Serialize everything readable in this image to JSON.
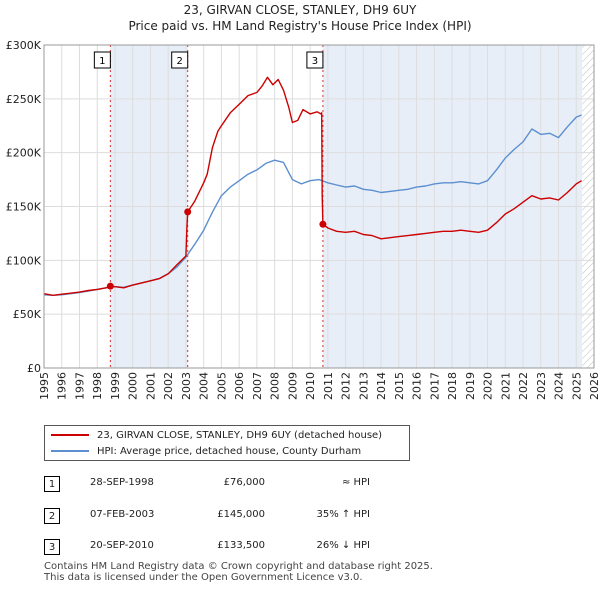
{
  "header": {
    "title": "23, GIRVAN CLOSE, STANLEY, DH9 6UY",
    "subtitle": "Price paid vs. HM Land Registry's House Price Index (HPI)"
  },
  "chart_data": {
    "type": "line",
    "title": "23, GIRVAN CLOSE, STANLEY, DH9 6UY",
    "subtitle": "Price paid vs. HM Land Registry's House Price Index (HPI)",
    "xlim": [
      1995,
      2026
    ],
    "ylim": [
      0,
      300000
    ],
    "x_ticks": [
      "1995",
      "1996",
      "1997",
      "1998",
      "1999",
      "2000",
      "2001",
      "2002",
      "2003",
      "2004",
      "2005",
      "2006",
      "2007",
      "2008",
      "2009",
      "2010",
      "2011",
      "2012",
      "2013",
      "2014",
      "2015",
      "2016",
      "2017",
      "2018",
      "2019",
      "2020",
      "2021",
      "2022",
      "2023",
      "2024",
      "2025",
      "2026"
    ],
    "y_ticks": [
      {
        "value": 0,
        "label": "£0"
      },
      {
        "value": 50000,
        "label": "£50K"
      },
      {
        "value": 100000,
        "label": "£100K"
      },
      {
        "value": 150000,
        "label": "£150K"
      },
      {
        "value": 200000,
        "label": "£200K"
      },
      {
        "value": 250000,
        "label": "£250K"
      },
      {
        "value": 300000,
        "label": "£300K"
      }
    ],
    "shaded_ranges": [
      [
        1998.74,
        2003.1
      ],
      [
        2010.72,
        2025.33
      ]
    ],
    "hatch_from": 2025.33,
    "series": [
      {
        "name": "23, GIRVAN CLOSE, STANLEY, DH9 6UY (detached house)",
        "color": "#cc0000",
        "points": [
          [
            1995.0,
            69000
          ],
          [
            1995.5,
            67500
          ],
          [
            1996.0,
            68500
          ],
          [
            1996.5,
            69500
          ],
          [
            1997.0,
            70500
          ],
          [
            1997.5,
            72000
          ],
          [
            1998.0,
            73000
          ],
          [
            1998.5,
            74500
          ],
          [
            1998.74,
            76000
          ],
          [
            1999.0,
            75500
          ],
          [
            1999.5,
            74500
          ],
          [
            2000.0,
            77000
          ],
          [
            2000.5,
            79000
          ],
          [
            2001.0,
            81000
          ],
          [
            2001.5,
            83000
          ],
          [
            2002.0,
            87500
          ],
          [
            2002.5,
            96000
          ],
          [
            2003.0,
            104000
          ],
          [
            2003.05,
            128000
          ],
          [
            2003.1,
            145000
          ],
          [
            2003.5,
            155000
          ],
          [
            2004.0,
            172000
          ],
          [
            2004.2,
            180000
          ],
          [
            2004.5,
            205000
          ],
          [
            2004.8,
            220000
          ],
          [
            2005.0,
            225000
          ],
          [
            2005.5,
            237000
          ],
          [
            2006.0,
            245000
          ],
          [
            2006.5,
            253000
          ],
          [
            2007.0,
            256000
          ],
          [
            2007.3,
            262000
          ],
          [
            2007.6,
            270000
          ],
          [
            2007.9,
            263000
          ],
          [
            2008.2,
            268000
          ],
          [
            2008.5,
            258000
          ],
          [
            2008.8,
            242000
          ],
          [
            2009.0,
            228000
          ],
          [
            2009.3,
            230000
          ],
          [
            2009.6,
            240000
          ],
          [
            2010.0,
            236000
          ],
          [
            2010.4,
            238000
          ],
          [
            2010.6,
            236000
          ],
          [
            2010.65,
            237000
          ],
          [
            2010.68,
            160000
          ],
          [
            2010.72,
            133500
          ],
          [
            2011.0,
            130000
          ],
          [
            2011.5,
            127000
          ],
          [
            2012.0,
            126000
          ],
          [
            2012.5,
            127000
          ],
          [
            2013.0,
            124000
          ],
          [
            2013.5,
            123000
          ],
          [
            2014.0,
            120000
          ],
          [
            2014.5,
            121000
          ],
          [
            2015.0,
            122000
          ],
          [
            2015.5,
            123000
          ],
          [
            2016.0,
            124000
          ],
          [
            2016.5,
            125000
          ],
          [
            2017.0,
            126000
          ],
          [
            2017.5,
            127000
          ],
          [
            2018.0,
            127000
          ],
          [
            2018.5,
            128000
          ],
          [
            2019.0,
            127000
          ],
          [
            2019.5,
            126000
          ],
          [
            2020.0,
            128000
          ],
          [
            2020.5,
            135000
          ],
          [
            2021.0,
            143000
          ],
          [
            2021.5,
            148000
          ],
          [
            2022.0,
            154000
          ],
          [
            2022.5,
            160000
          ],
          [
            2023.0,
            157000
          ],
          [
            2023.5,
            158000
          ],
          [
            2024.0,
            156000
          ],
          [
            2024.5,
            163000
          ],
          [
            2025.0,
            171000
          ],
          [
            2025.3,
            174000
          ]
        ]
      },
      {
        "name": "HPI: Average price, detached house, County Durham",
        "color": "#5b8fd0",
        "points": [
          [
            1995.0,
            68000
          ],
          [
            1995.5,
            67500
          ],
          [
            1996.0,
            68000
          ],
          [
            1996.5,
            69000
          ],
          [
            1997.0,
            70000
          ],
          [
            1997.5,
            71500
          ],
          [
            1998.0,
            73000
          ],
          [
            1998.5,
            74500
          ],
          [
            1999.0,
            75500
          ],
          [
            1999.5,
            75000
          ],
          [
            2000.0,
            77000
          ],
          [
            2000.5,
            79000
          ],
          [
            2001.0,
            81000
          ],
          [
            2001.5,
            83000
          ],
          [
            2002.0,
            87500
          ],
          [
            2002.5,
            94000
          ],
          [
            2003.0,
            103000
          ],
          [
            2003.5,
            115000
          ],
          [
            2004.0,
            128000
          ],
          [
            2004.5,
            145000
          ],
          [
            2005.0,
            160000
          ],
          [
            2005.5,
            168000
          ],
          [
            2006.0,
            174000
          ],
          [
            2006.5,
            180000
          ],
          [
            2007.0,
            184000
          ],
          [
            2007.5,
            190000
          ],
          [
            2008.0,
            193000
          ],
          [
            2008.5,
            191000
          ],
          [
            2009.0,
            175000
          ],
          [
            2009.5,
            171000
          ],
          [
            2010.0,
            174000
          ],
          [
            2010.5,
            175000
          ],
          [
            2011.0,
            172000
          ],
          [
            2011.5,
            170000
          ],
          [
            2012.0,
            168000
          ],
          [
            2012.5,
            169000
          ],
          [
            2013.0,
            166000
          ],
          [
            2013.5,
            165000
          ],
          [
            2014.0,
            163000
          ],
          [
            2014.5,
            164000
          ],
          [
            2015.0,
            165000
          ],
          [
            2015.5,
            166000
          ],
          [
            2016.0,
            168000
          ],
          [
            2016.5,
            169000
          ],
          [
            2017.0,
            171000
          ],
          [
            2017.5,
            172000
          ],
          [
            2018.0,
            172000
          ],
          [
            2018.5,
            173000
          ],
          [
            2019.0,
            172000
          ],
          [
            2019.5,
            171000
          ],
          [
            2020.0,
            174000
          ],
          [
            2020.5,
            184000
          ],
          [
            2021.0,
            195000
          ],
          [
            2021.5,
            203000
          ],
          [
            2022.0,
            210000
          ],
          [
            2022.5,
            222000
          ],
          [
            2023.0,
            217000
          ],
          [
            2023.5,
            218000
          ],
          [
            2024.0,
            214000
          ],
          [
            2024.5,
            224000
          ],
          [
            2025.0,
            233000
          ],
          [
            2025.3,
            235000
          ]
        ]
      }
    ],
    "sales": [
      {
        "id": "1",
        "year": 1998.74,
        "price": 76000
      },
      {
        "id": "2",
        "year": 2003.1,
        "price": 145000
      },
      {
        "id": "3",
        "year": 2010.72,
        "price": 133500
      }
    ]
  },
  "legend": [
    {
      "label": "23, GIRVAN CLOSE, STANLEY, DH9 6UY (detached house)",
      "color": "#cc0000"
    },
    {
      "label": "HPI: Average price, detached house, County Durham",
      "color": "#5b8fd0"
    }
  ],
  "transactions": [
    {
      "id": "1",
      "date": "28-SEP-1998",
      "price": "£76,000",
      "hpi": "≈ HPI"
    },
    {
      "id": "2",
      "date": "07-FEB-2003",
      "price": "£145,000",
      "hpi": "35% ↑ HPI"
    },
    {
      "id": "3",
      "date": "20-SEP-2010",
      "price": "£133,500",
      "hpi": "26% ↓ HPI"
    }
  ],
  "footer": {
    "line1": "Contains HM Land Registry data © Crown copyright and database right 2025.",
    "line2": "This data is licensed under the Open Government Licence v3.0."
  }
}
